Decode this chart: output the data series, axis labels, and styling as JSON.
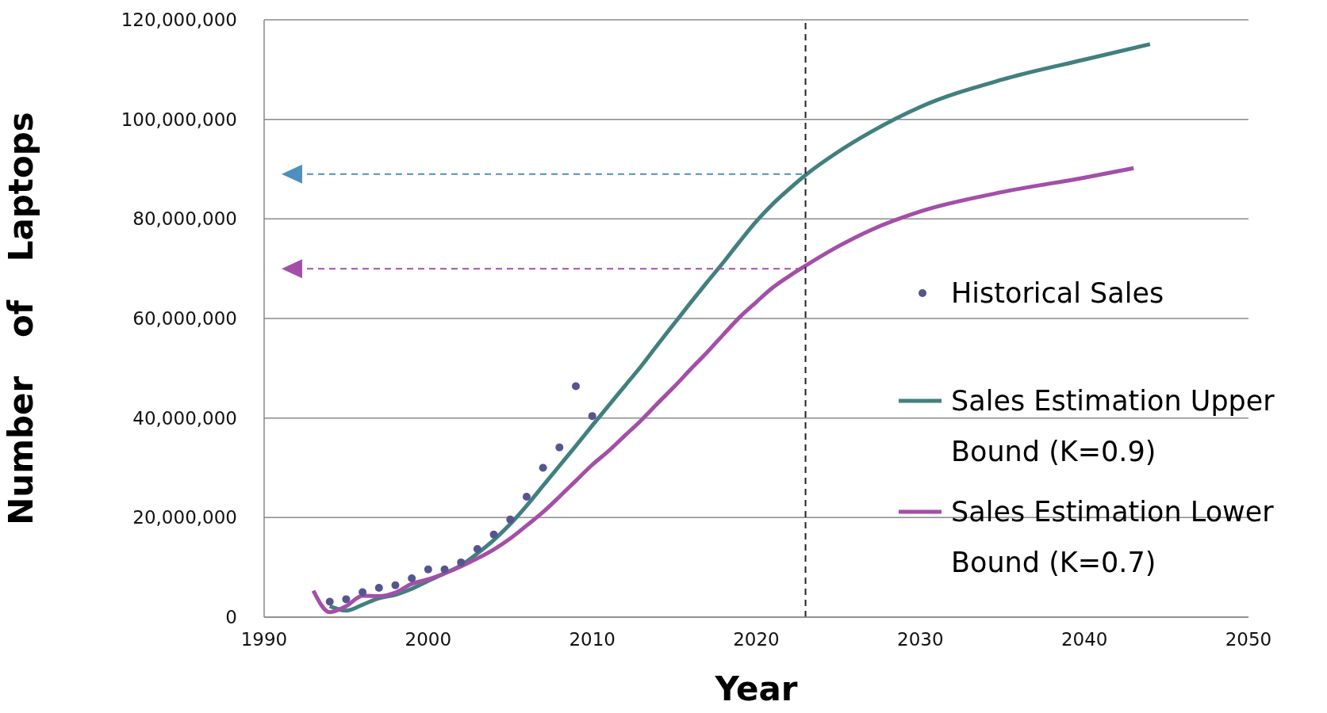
{
  "chart_data": {
    "type": "line",
    "xlabel": "Year",
    "ylabel": "Number of Laptops",
    "xlim": [
      1990,
      2050
    ],
    "xticks": [
      1990,
      2000,
      2010,
      2020,
      2030,
      2040,
      2050
    ],
    "ylim": [
      0,
      120000000
    ],
    "yticks": [
      {
        "value": 0,
        "label": "0"
      },
      {
        "value": 20000000,
        "label": "20,000,000"
      },
      {
        "value": 40000000,
        "label": "40,000,000"
      },
      {
        "value": 60000000,
        "label": "60,000,000"
      },
      {
        "value": 80000000,
        "label": "80,000,000"
      },
      {
        "value": 100000000,
        "label": "100,000,000"
      },
      {
        "value": 120000000,
        "label": "120,000,000"
      }
    ],
    "grid": "y",
    "legend": "right",
    "series": [
      {
        "name": "Historical Sales",
        "type": "scatter",
        "marker": "circle",
        "color": "#565590",
        "x": [
          1994,
          1995,
          1996,
          1997,
          1998,
          1999,
          2000,
          2001,
          2002,
          2003,
          2004,
          2005,
          2006,
          2007,
          2008,
          2009,
          2010
        ],
        "values": [
          3100000,
          3600000,
          5000000,
          5900000,
          6400000,
          7800000,
          9600000,
          9600000,
          11000000,
          13700000,
          16600000,
          19600000,
          24200000,
          30000000,
          34100000,
          46400000,
          40400000
        ]
      },
      {
        "name": "Sales Estimation Upper Bound (K=0.9)",
        "marker": "none",
        "line_style": "solid",
        "color": "#41807f",
        "x": [
          1994,
          1995,
          1996,
          1997,
          1998,
          1999,
          2000,
          2001,
          2002,
          2003,
          2004,
          2005,
          2006,
          2007,
          2008,
          2009,
          2010,
          2011,
          2012,
          2013,
          2014,
          2015,
          2016,
          2017,
          2018,
          2019,
          2020,
          2021,
          2022,
          2023,
          2025,
          2027,
          2030,
          2035,
          2040,
          2044
        ],
        "values": [
          2200000,
          1300000,
          2500000,
          3800000,
          4500000,
          5700000,
          7300000,
          8800000,
          10400000,
          12800000,
          15500000,
          18700000,
          22400000,
          26400000,
          30400000,
          34400000,
          38500000,
          42500000,
          46500000,
          50500000,
          54800000,
          59000000,
          63200000,
          67300000,
          71300000,
          75500000,
          79500000,
          83000000,
          86000000,
          88800000,
          93500000,
          97500000,
          102500000,
          108000000,
          112000000,
          115100000
        ]
      },
      {
        "name": "Sales Estimation Lower Bound (K=0.7)",
        "marker": "none",
        "line_style": "solid",
        "color": "#a34fa8",
        "x": [
          1993,
          1994,
          1995,
          1996,
          1997,
          1998,
          1999,
          2000,
          2001,
          2002,
          2003,
          2004,
          2005,
          2006,
          2007,
          2008,
          2009,
          2010,
          2011,
          2012,
          2013,
          2014,
          2015,
          2016,
          2017,
          2018,
          2019,
          2020,
          2021,
          2022,
          2023,
          2025,
          2027,
          2030,
          2035,
          2040,
          2043
        ],
        "values": [
          5300000,
          1000000,
          2200000,
          4300000,
          4200000,
          4900000,
          6700000,
          7600000,
          8800000,
          10200000,
          11800000,
          13600000,
          15800000,
          18400000,
          21100000,
          24200000,
          27400000,
          30600000,
          33400000,
          36500000,
          39600000,
          43000000,
          46300000,
          49800000,
          53200000,
          56800000,
          60300000,
          63300000,
          66200000,
          68500000,
          70600000,
          74500000,
          77800000,
          81500000,
          85400000,
          88300000,
          90200000
        ]
      }
    ],
    "ref_lines": [
      {
        "axis": "x",
        "value": 2023,
        "color": "#222222",
        "line_style": "dashed"
      },
      {
        "axis": "y",
        "value": 89000000,
        "color": "#4f8fc0",
        "line_style": "dashed"
      },
      {
        "axis": "y",
        "value": 70000000,
        "color": "#a34fa8",
        "line_style": "dashed"
      }
    ]
  }
}
